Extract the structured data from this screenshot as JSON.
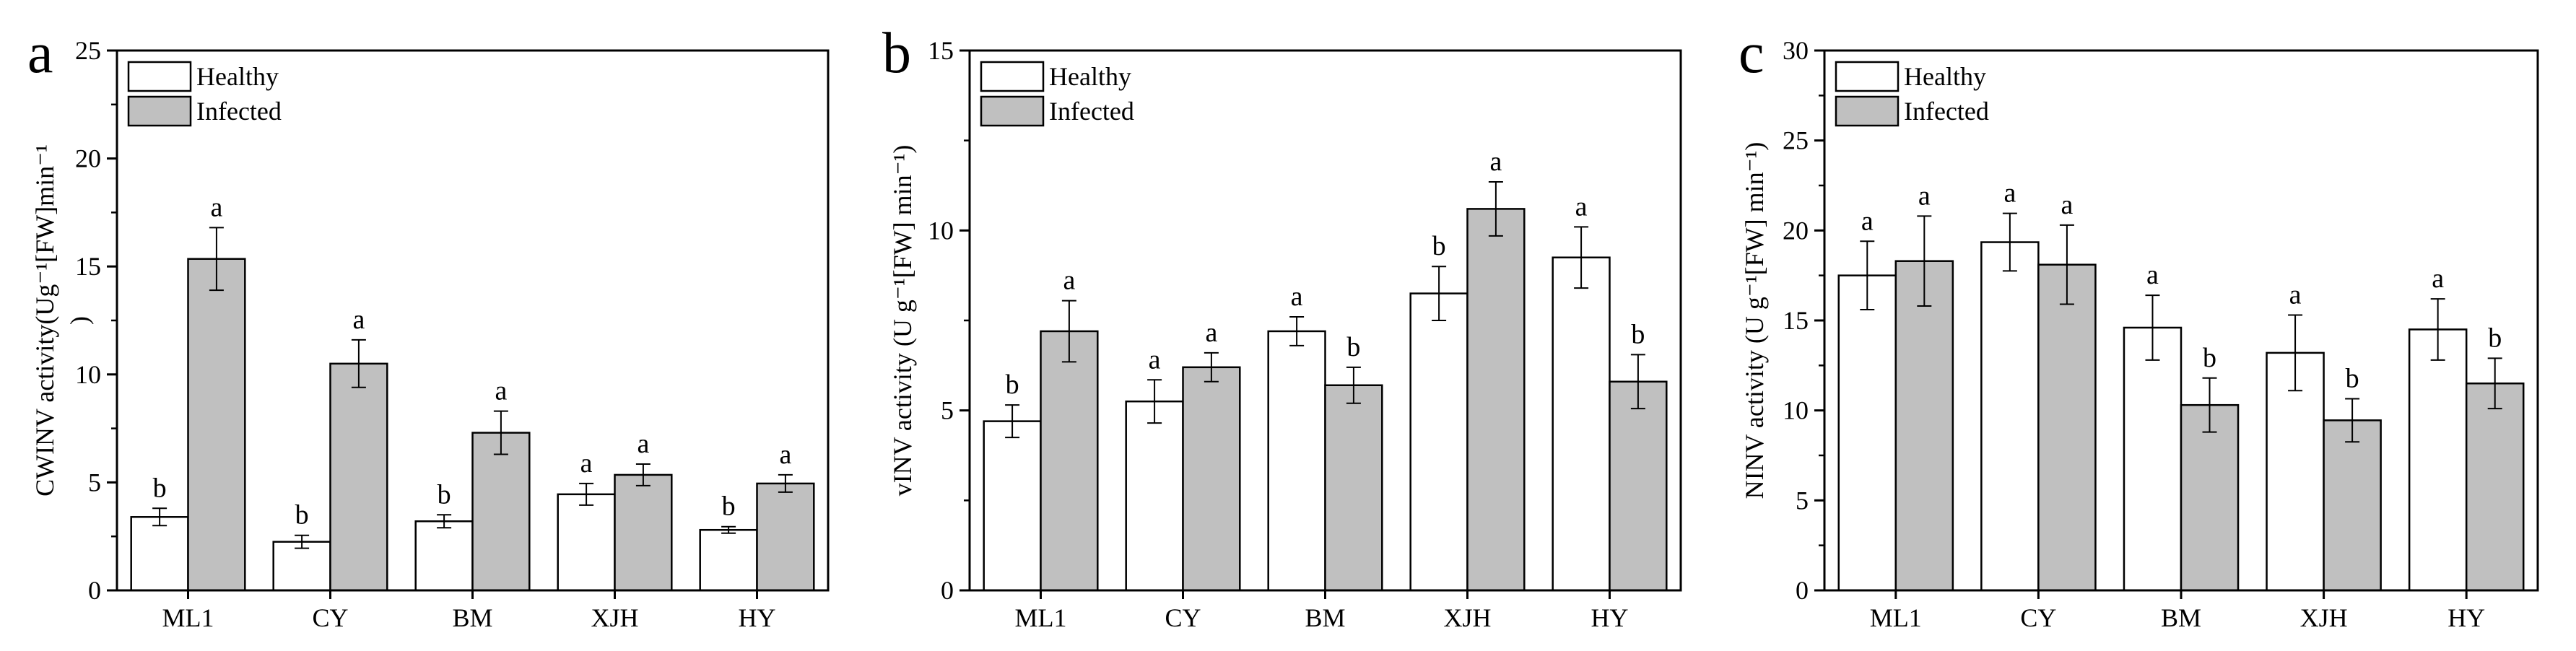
{
  "chart_data": [
    {
      "type": "bar",
      "panel_label": "a",
      "ylabel": "CWINV activity(U g⁻¹[FW]min⁻¹)",
      "ylabel_lines": [
        "CWINV activity(Ug⁻¹[FW]min⁻¹",
        ")"
      ],
      "ylim": [
        0,
        25
      ],
      "yticks": [
        0,
        5,
        10,
        15,
        20,
        25
      ],
      "categories": [
        "ML1",
        "CY",
        "BM",
        "XJH",
        "HY"
      ],
      "legend": [
        "Healthy",
        "Infected"
      ],
      "series": [
        {
          "name": "Healthy",
          "color": "#ffffff",
          "values": [
            3.4,
            2.25,
            3.2,
            4.45,
            2.8
          ],
          "errors": [
            0.4,
            0.3,
            0.3,
            0.5,
            0.15
          ],
          "labels": [
            "b",
            "b",
            "b",
            "a",
            "b"
          ]
        },
        {
          "name": "Infected",
          "color": "#c0c0c0",
          "values": [
            15.35,
            10.5,
            7.3,
            5.35,
            4.95
          ],
          "errors": [
            1.45,
            1.1,
            1.0,
            0.5,
            0.4
          ],
          "labels": [
            "a",
            "a",
            "a",
            "a",
            "a"
          ]
        }
      ]
    },
    {
      "type": "bar",
      "panel_label": "b",
      "ylabel": "vINV activity (U g⁻¹[FW] min⁻¹)",
      "ylabel_lines": [
        "vINV activity (U g⁻¹[FW] min⁻¹)"
      ],
      "ylim": [
        0,
        15
      ],
      "yticks": [
        0,
        5,
        10,
        15
      ],
      "categories": [
        "ML1",
        "CY",
        "BM",
        "XJH",
        "HY"
      ],
      "legend": [
        "Healthy",
        "Infected"
      ],
      "series": [
        {
          "name": "Healthy",
          "color": "#ffffff",
          "values": [
            4.7,
            5.25,
            7.2,
            8.25,
            9.25
          ],
          "errors": [
            0.45,
            0.6,
            0.4,
            0.75,
            0.85
          ],
          "labels": [
            "b",
            "a",
            "a",
            "b",
            "a"
          ]
        },
        {
          "name": "Infected",
          "color": "#c0c0c0",
          "values": [
            7.2,
            6.2,
            5.7,
            10.6,
            5.8
          ],
          "errors": [
            0.85,
            0.4,
            0.5,
            0.75,
            0.75
          ],
          "labels": [
            "a",
            "a",
            "b",
            "a",
            "b"
          ]
        }
      ]
    },
    {
      "type": "bar",
      "panel_label": "c",
      "ylabel": "NINV activity (U g⁻¹[FW] min⁻¹)",
      "ylabel_lines": [
        "NINV activity (U g⁻¹[FW] min⁻¹)"
      ],
      "ylim": [
        0,
        30
      ],
      "yticks": [
        0,
        5,
        10,
        15,
        20,
        25,
        30
      ],
      "categories": [
        "ML1",
        "CY",
        "BM",
        "XJH",
        "HY"
      ],
      "legend": [
        "Healthy",
        "Infected"
      ],
      "series": [
        {
          "name": "Healthy",
          "color": "#ffffff",
          "values": [
            17.5,
            19.35,
            14.6,
            13.2,
            14.5
          ],
          "errors": [
            1.9,
            1.6,
            1.8,
            2.1,
            1.7
          ],
          "labels": [
            "a",
            "a",
            "a",
            "a",
            "a"
          ]
        },
        {
          "name": "Infected",
          "color": "#c0c0c0",
          "values": [
            18.3,
            18.1,
            10.3,
            9.45,
            11.5
          ],
          "errors": [
            2.5,
            2.2,
            1.5,
            1.2,
            1.4
          ],
          "labels": [
            "a",
            "a",
            "b",
            "b",
            "b"
          ]
        }
      ]
    }
  ]
}
